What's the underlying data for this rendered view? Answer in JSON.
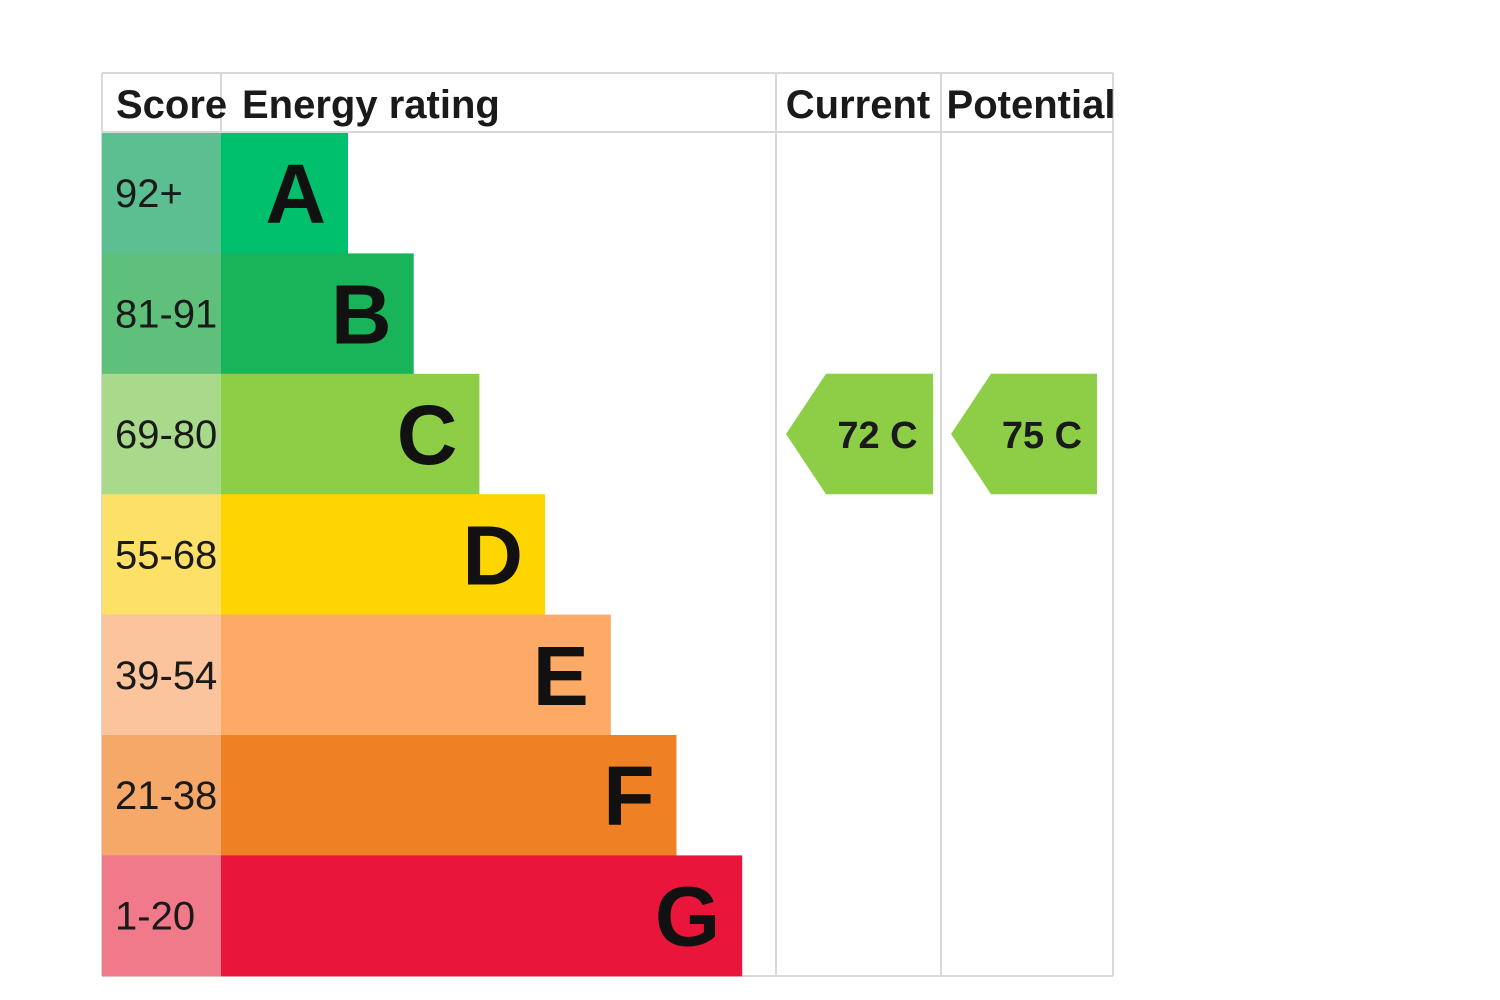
{
  "chart_data": {
    "type": "table",
    "headers": {
      "score": "Score",
      "energy_rating": "Energy rating",
      "current": "Current",
      "potential": "Potential"
    },
    "bands": [
      {
        "letter": "A",
        "score": "92+",
        "score_color": "#5cbf91",
        "bar_color": "#00c06e"
      },
      {
        "letter": "B",
        "score": "81-91",
        "score_color": "#5ec07a",
        "bar_color": "#19b459"
      },
      {
        "letter": "C",
        "score": "69-80",
        "score_color": "#a9d98a",
        "bar_color": "#8dce46"
      },
      {
        "letter": "D",
        "score": "55-68",
        "score_color": "#fde067",
        "bar_color": "#ffd500"
      },
      {
        "letter": "E",
        "score": "39-54",
        "score_color": "#fbc49c",
        "bar_color": "#fcaa65"
      },
      {
        "letter": "F",
        "score": "21-38",
        "score_color": "#f5a868",
        "bar_color": "#ef8023"
      },
      {
        "letter": "G",
        "score": "1-20",
        "score_color": "#f07a8a",
        "bar_color": "#e9153b"
      }
    ],
    "current": {
      "value": 72,
      "band": "C",
      "label": "72  C",
      "color": "#8dce46"
    },
    "potential": {
      "value": 75,
      "band": "C",
      "label": "75  C",
      "color": "#8dce46"
    }
  }
}
